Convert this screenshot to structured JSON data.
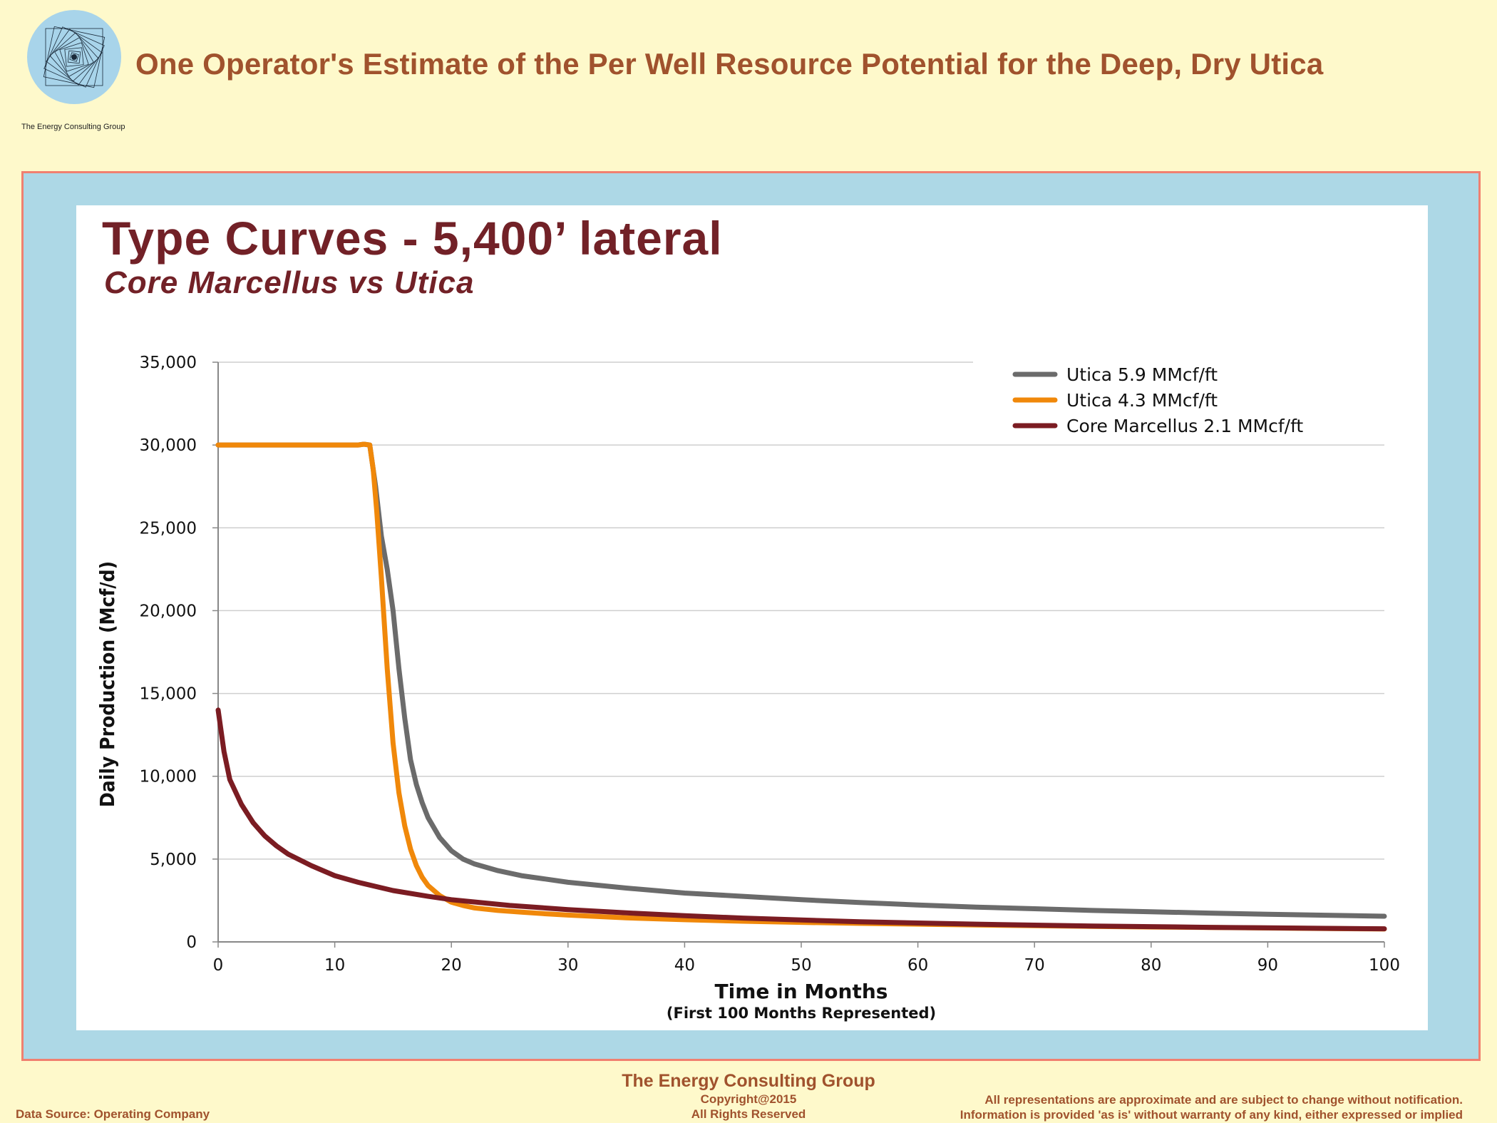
{
  "headline": "One Operator's Estimate of the Per Well Resource Potential for the Deep, Dry Utica",
  "logo": {
    "caption": "The Energy Consulting Group",
    "icon": "spiral-logo-icon"
  },
  "footer": {
    "org": "The Energy Consulting Group",
    "copyright": "Copyright@2015",
    "rights": "All Rights Reserved",
    "source": "Data Source: Operating Company",
    "disclaimer_1": "All representations are approximate and are subject to change without notification.",
    "disclaimer_2": "Information is provided 'as is' without warranty of any kind, either expressed or implied"
  },
  "colors": {
    "background": "#fef9cb",
    "frame": "#add8e6",
    "frame_border": "#f08070",
    "headline": "#a0522d",
    "title": "#722127"
  },
  "chart_data": {
    "type": "line",
    "title": "Type Curves - 5,400’ lateral",
    "subtitle": "Core Marcellus vs Utica",
    "xlabel": "Time in Months",
    "xlabel_sub": "(First 100 Months Represented)",
    "ylabel": "Daily Production (Mcf/d)",
    "xlim": [
      0,
      100
    ],
    "ylim": [
      0,
      35000
    ],
    "xticks": [
      0,
      10,
      20,
      30,
      40,
      50,
      60,
      70,
      80,
      90,
      100
    ],
    "yticks": [
      0,
      5000,
      10000,
      15000,
      20000,
      25000,
      30000,
      35000
    ],
    "ytick_labels": [
      "0",
      "5,000",
      "10,000",
      "15,000",
      "20,000",
      "25,000",
      "30,000",
      "35,000"
    ],
    "grid": "horizontal",
    "legend": "top-right",
    "series": [
      {
        "name": "Utica 5.9 MMcf/ft",
        "color": "#6b6b6b",
        "x": [
          0,
          12,
          12.5,
          13,
          13.5,
          14,
          14.5,
          15,
          15.5,
          16,
          16.5,
          17,
          17.5,
          18,
          19,
          20,
          21,
          22,
          24,
          26,
          28,
          30,
          35,
          40,
          45,
          50,
          55,
          60,
          65,
          70,
          75,
          80,
          85,
          90,
          95,
          100
        ],
        "y": [
          30000,
          30000,
          30050,
          30000,
          27500,
          24500,
          22500,
          20000,
          16500,
          13500,
          11000,
          9500,
          8400,
          7500,
          6300,
          5500,
          5000,
          4700,
          4300,
          4000,
          3800,
          3600,
          3250,
          2950,
          2750,
          2550,
          2380,
          2230,
          2100,
          2000,
          1900,
          1820,
          1740,
          1670,
          1610,
          1550
        ]
      },
      {
        "name": "Utica 4.3 MMcf/ft",
        "color": "#f0880a",
        "x": [
          0,
          12,
          12.5,
          13,
          13.3,
          13.6,
          14,
          14.5,
          15,
          15.5,
          16,
          16.5,
          17,
          17.5,
          18,
          19,
          20,
          21,
          22,
          24,
          26,
          28,
          30,
          35,
          40,
          45,
          50,
          55,
          60,
          65,
          70,
          75,
          80,
          85,
          90,
          95,
          100
        ],
        "y": [
          30000,
          30000,
          30050,
          30000,
          28500,
          26000,
          22000,
          16500,
          12000,
          9000,
          7000,
          5600,
          4600,
          3900,
          3400,
          2800,
          2400,
          2200,
          2050,
          1900,
          1800,
          1700,
          1620,
          1450,
          1340,
          1250,
          1180,
          1120,
          1070,
          1020,
          980,
          940,
          900,
          870,
          840,
          810,
          780
        ]
      },
      {
        "name": "Core Marcellus 2.1 MMcf/ft",
        "color": "#7b1c22",
        "x": [
          0,
          0.5,
          1,
          2,
          3,
          4,
          5,
          6,
          8,
          10,
          12,
          15,
          18,
          20,
          25,
          30,
          35,
          40,
          45,
          50,
          55,
          60,
          65,
          70,
          75,
          80,
          85,
          90,
          95,
          100
        ],
        "y": [
          14000,
          11500,
          9800,
          8300,
          7200,
          6400,
          5800,
          5300,
          4600,
          4000,
          3600,
          3100,
          2750,
          2550,
          2200,
          1950,
          1750,
          1580,
          1440,
          1320,
          1220,
          1140,
          1070,
          1010,
          960,
          920,
          880,
          850,
          820,
          790
        ]
      }
    ]
  }
}
